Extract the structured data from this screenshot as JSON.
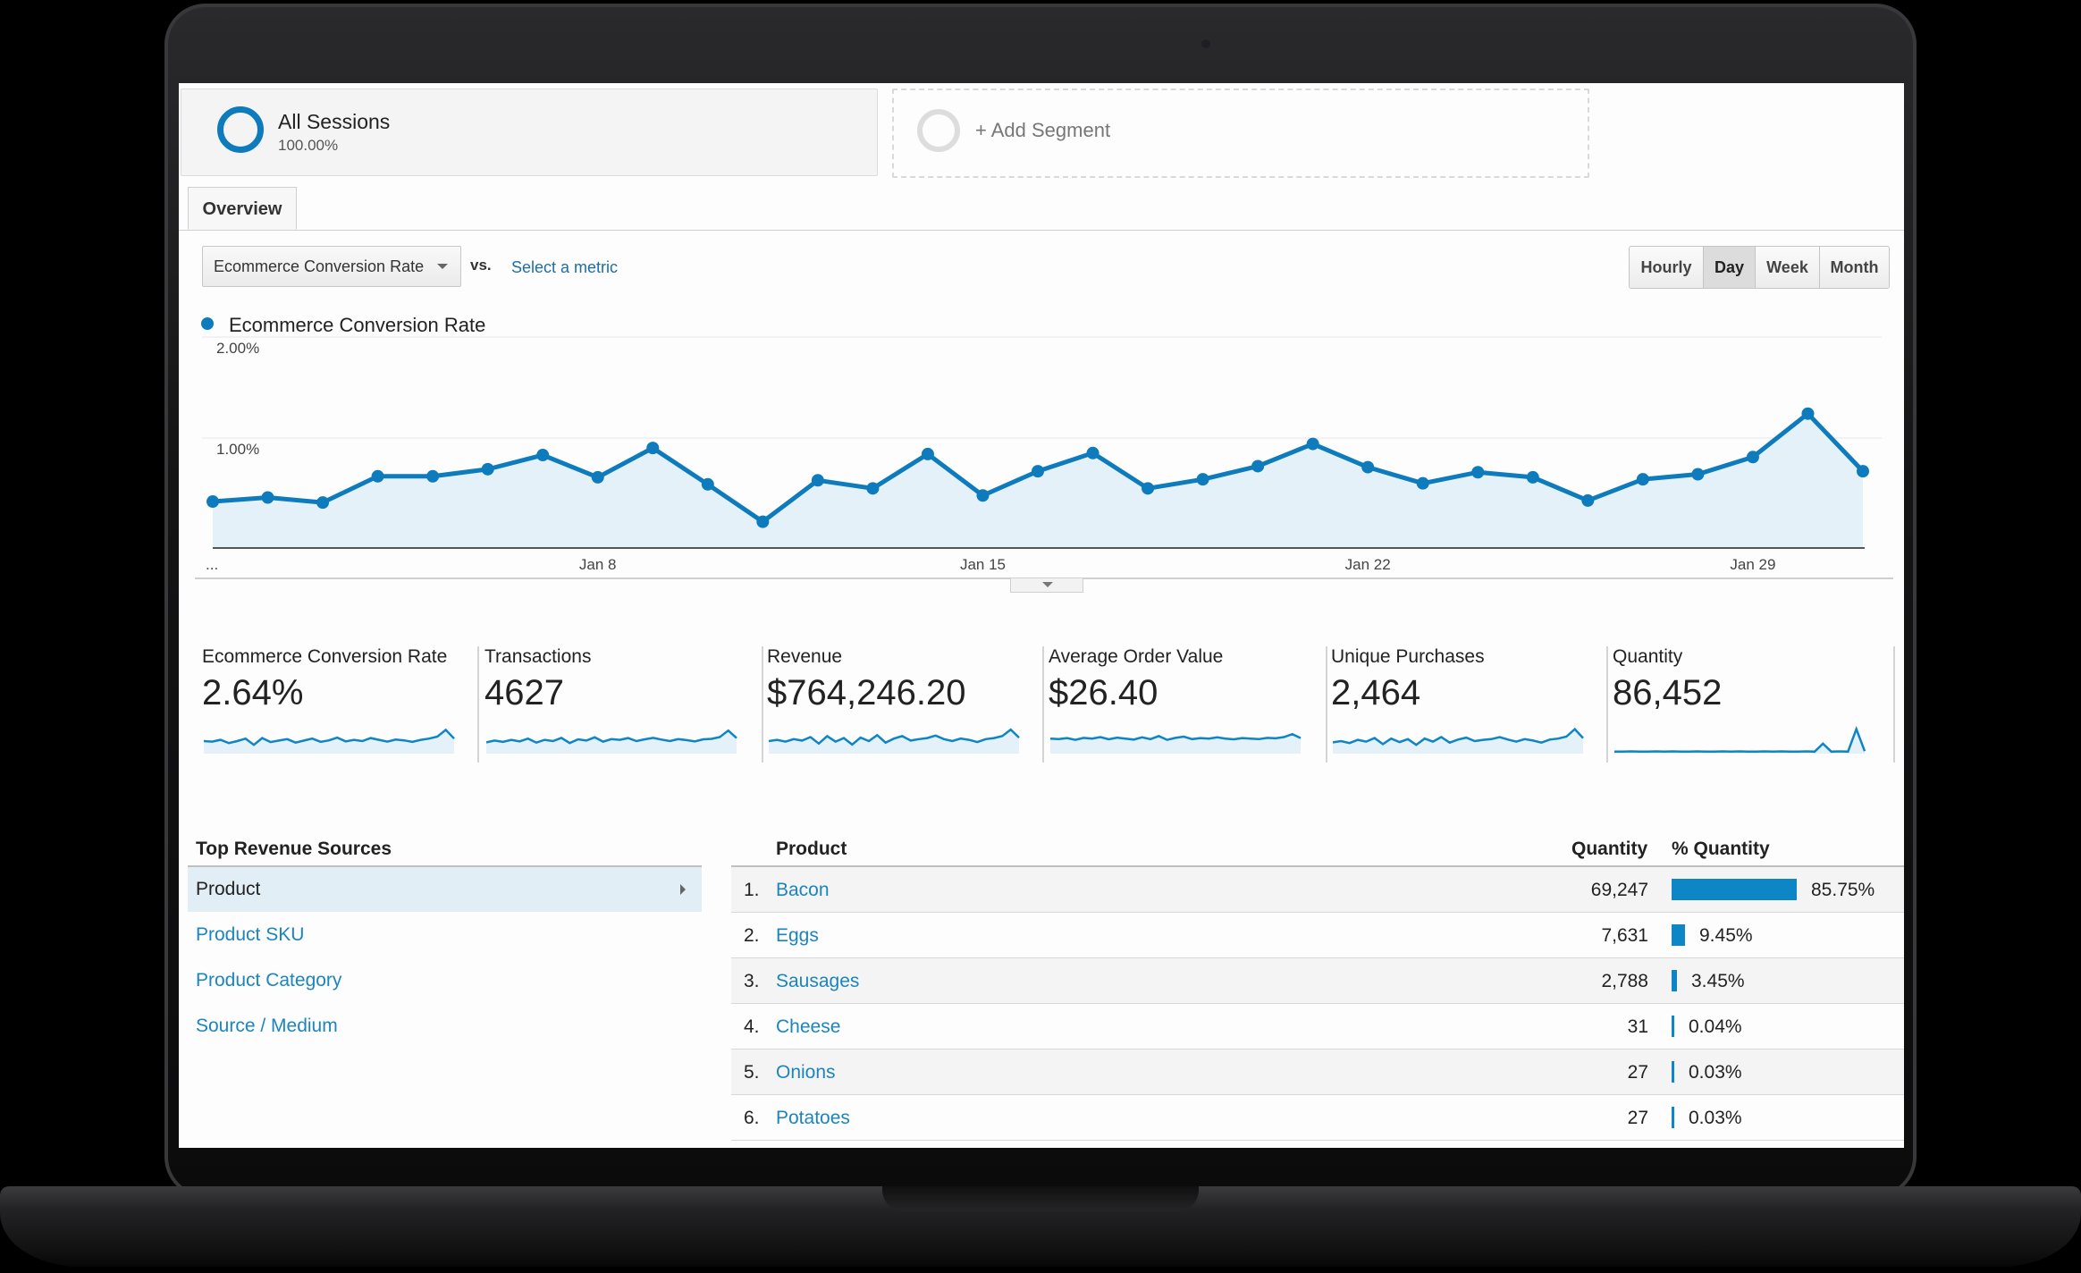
{
  "segments": {
    "main": {
      "title": "All Sessions",
      "percent": "100.00%"
    },
    "add_label": "+ Add Segment"
  },
  "tabs": [
    {
      "label": "Overview"
    }
  ],
  "metric_select": {
    "value": "Ecommerce Conversion Rate",
    "vs": "vs.",
    "select_metric": "Select a metric"
  },
  "granularity": {
    "buttons": [
      "Hourly",
      "Day",
      "Week",
      "Month"
    ],
    "active": "Day"
  },
  "colors": {
    "accent": "#0e7bbd",
    "link": "#1c85bd"
  },
  "chart_data": {
    "type": "area",
    "legend": [
      "Ecommerce Conversion Rate"
    ],
    "y_ticks": [
      "2.00%",
      "1.00%"
    ],
    "ylim": [
      0,
      2
    ],
    "x_tick_labels": [
      "...",
      "Jan 8",
      "Jan 15",
      "Jan 22",
      "Jan 29"
    ],
    "series": [
      {
        "name": "Ecommerce Conversion Rate",
        "x": [
          "Jan 1",
          "Jan 2",
          "Jan 3",
          "Jan 4",
          "Jan 5",
          "Jan 6",
          "Jan 7",
          "Jan 8",
          "Jan 9",
          "Jan 10",
          "Jan 11",
          "Jan 12",
          "Jan 13",
          "Jan 14",
          "Jan 15",
          "Jan 16",
          "Jan 17",
          "Jan 18",
          "Jan 19",
          "Jan 20",
          "Jan 21",
          "Jan 22",
          "Jan 23",
          "Jan 24",
          "Jan 25",
          "Jan 26",
          "Jan 27",
          "Jan 28",
          "Jan 29",
          "Jan 30",
          "Jan 31"
        ],
        "values": [
          0.46,
          0.5,
          0.45,
          0.71,
          0.71,
          0.78,
          0.92,
          0.7,
          0.99,
          0.63,
          0.26,
          0.67,
          0.59,
          0.93,
          0.52,
          0.76,
          0.94,
          0.59,
          0.68,
          0.81,
          1.03,
          0.8,
          0.64,
          0.75,
          0.7,
          0.47,
          0.68,
          0.73,
          0.9,
          1.33,
          0.76
        ]
      }
    ],
    "grid": true
  },
  "scorecards": [
    {
      "label": "Ecommerce Conversion Rate",
      "value": "2.64%",
      "spark": [
        0.5,
        0.48,
        0.55,
        0.42,
        0.5,
        0.6,
        0.35,
        0.62,
        0.46,
        0.52,
        0.58,
        0.44,
        0.52,
        0.6,
        0.47,
        0.53,
        0.64,
        0.49,
        0.55,
        0.5,
        0.62,
        0.55,
        0.48,
        0.56,
        0.53,
        0.47,
        0.55,
        0.6,
        0.68,
        0.95,
        0.6
      ]
    },
    {
      "label": "Transactions",
      "value": "4627",
      "spark": [
        0.45,
        0.52,
        0.47,
        0.55,
        0.49,
        0.6,
        0.44,
        0.55,
        0.5,
        0.63,
        0.42,
        0.57,
        0.52,
        0.65,
        0.48,
        0.58,
        0.55,
        0.62,
        0.5,
        0.57,
        0.63,
        0.56,
        0.5,
        0.58,
        0.54,
        0.49,
        0.57,
        0.59,
        0.66,
        0.92,
        0.62
      ]
    },
    {
      "label": "Revenue",
      "value": "$764,246.20",
      "spark": [
        0.5,
        0.55,
        0.48,
        0.58,
        0.52,
        0.66,
        0.4,
        0.7,
        0.48,
        0.62,
        0.36,
        0.64,
        0.5,
        0.74,
        0.44,
        0.6,
        0.7,
        0.52,
        0.58,
        0.62,
        0.72,
        0.58,
        0.5,
        0.6,
        0.55,
        0.46,
        0.58,
        0.62,
        0.7,
        0.96,
        0.64
      ]
    },
    {
      "label": "Average Order Value",
      "value": "$26.40",
      "spark": [
        0.6,
        0.58,
        0.62,
        0.55,
        0.63,
        0.6,
        0.66,
        0.57,
        0.64,
        0.6,
        0.56,
        0.65,
        0.58,
        0.7,
        0.55,
        0.63,
        0.68,
        0.58,
        0.62,
        0.6,
        0.65,
        0.6,
        0.57,
        0.62,
        0.6,
        0.58,
        0.63,
        0.61,
        0.66,
        0.78,
        0.62
      ]
    },
    {
      "label": "Unique Purchases",
      "value": "2,464",
      "spark": [
        0.45,
        0.5,
        0.42,
        0.55,
        0.48,
        0.62,
        0.38,
        0.6,
        0.46,
        0.58,
        0.35,
        0.6,
        0.48,
        0.66,
        0.44,
        0.56,
        0.64,
        0.5,
        0.55,
        0.58,
        0.66,
        0.56,
        0.48,
        0.58,
        0.52,
        0.44,
        0.56,
        0.6,
        0.68,
        0.98,
        0.62
      ]
    },
    {
      "label": "Quantity",
      "value": "86,452",
      "spark": [
        0.08,
        0.08,
        0.09,
        0.08,
        0.08,
        0.09,
        0.08,
        0.09,
        0.08,
        0.08,
        0.09,
        0.08,
        0.08,
        0.09,
        0.08,
        0.09,
        0.08,
        0.08,
        0.09,
        0.08,
        0.09,
        0.08,
        0.08,
        0.09,
        0.08,
        0.4,
        0.08,
        0.09,
        0.08,
        0.98,
        0.1
      ]
    }
  ],
  "top_sources": {
    "title": "Top Revenue Sources",
    "items": [
      "Product",
      "Product SKU",
      "Product Category",
      "Source / Medium"
    ],
    "active": "Product"
  },
  "product_table": {
    "headers": {
      "product": "Product",
      "quantity": "Quantity",
      "pct": "% Quantity"
    },
    "rows": [
      {
        "index": "1.",
        "name": "Bacon",
        "quantity": "69,247",
        "pct": "85.75%",
        "share": 0.8575
      },
      {
        "index": "2.",
        "name": "Eggs",
        "quantity": "7,631",
        "pct": "9.45%",
        "share": 0.0945
      },
      {
        "index": "3.",
        "name": "Sausages",
        "quantity": "2,788",
        "pct": "3.45%",
        "share": 0.0345
      },
      {
        "index": "4.",
        "name": "Cheese",
        "quantity": "31",
        "pct": "0.04%",
        "share": 0.0004
      },
      {
        "index": "5.",
        "name": "Onions",
        "quantity": "27",
        "pct": "0.03%",
        "share": 0.0003
      },
      {
        "index": "6.",
        "name": "Potatoes",
        "quantity": "27",
        "pct": "0.03%",
        "share": 0.0003
      }
    ]
  }
}
